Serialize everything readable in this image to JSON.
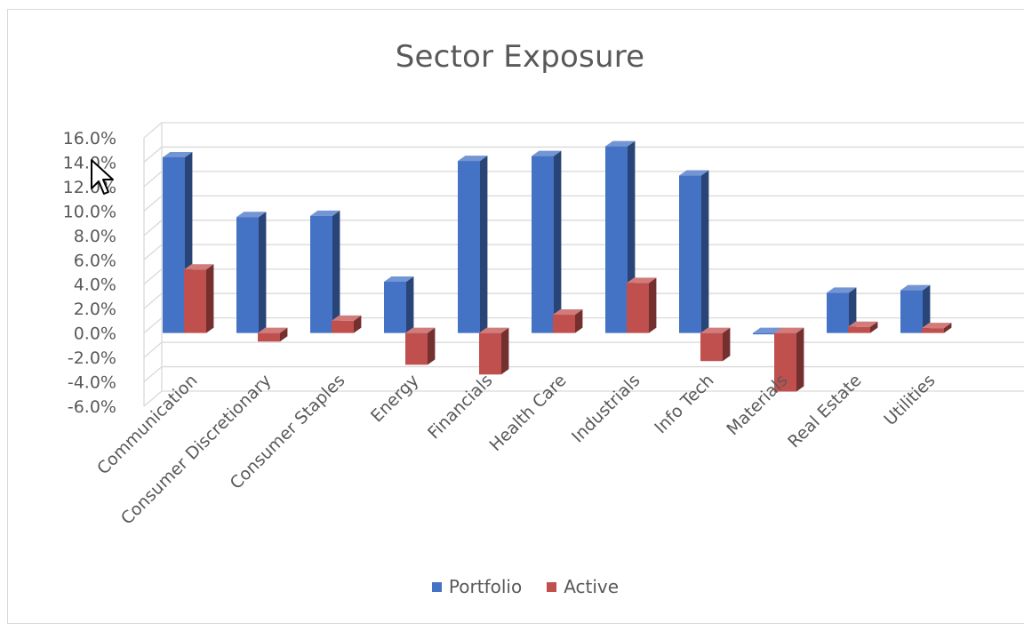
{
  "chart_data": {
    "type": "bar",
    "title": "Sector Exposure",
    "categories": [
      "Communication",
      "Consumer Discretionary",
      "Consumer Staples",
      "Energy",
      "Financials",
      "Health Care",
      "Industrials",
      "Info Tech",
      "Materials",
      "Real Estate",
      "Utilities"
    ],
    "series": [
      {
        "name": "Portfolio",
        "color": "#4472c4",
        "values": [
          14.4,
          9.5,
          9.6,
          4.2,
          14.1,
          14.5,
          15.3,
          12.9,
          0.0,
          3.3,
          3.5
        ]
      },
      {
        "name": "Active",
        "color": "#c0504d",
        "values": [
          5.2,
          -0.7,
          1.0,
          -2.6,
          -3.4,
          1.5,
          4.1,
          -2.3,
          -4.8,
          0.5,
          0.4
        ]
      }
    ],
    "ylim": [
      -6,
      16
    ],
    "ytick_step": 2,
    "ytick_labels": [
      "-6.0%",
      "-4.0%",
      "-2.0%",
      "0.0%",
      "2.0%",
      "4.0%",
      "6.0%",
      "8.0%",
      "10.0%",
      "12.0%",
      "14.0%",
      "16.0%"
    ],
    "grid": true,
    "style": "3d-clustered-column",
    "legend_position": "bottom"
  }
}
